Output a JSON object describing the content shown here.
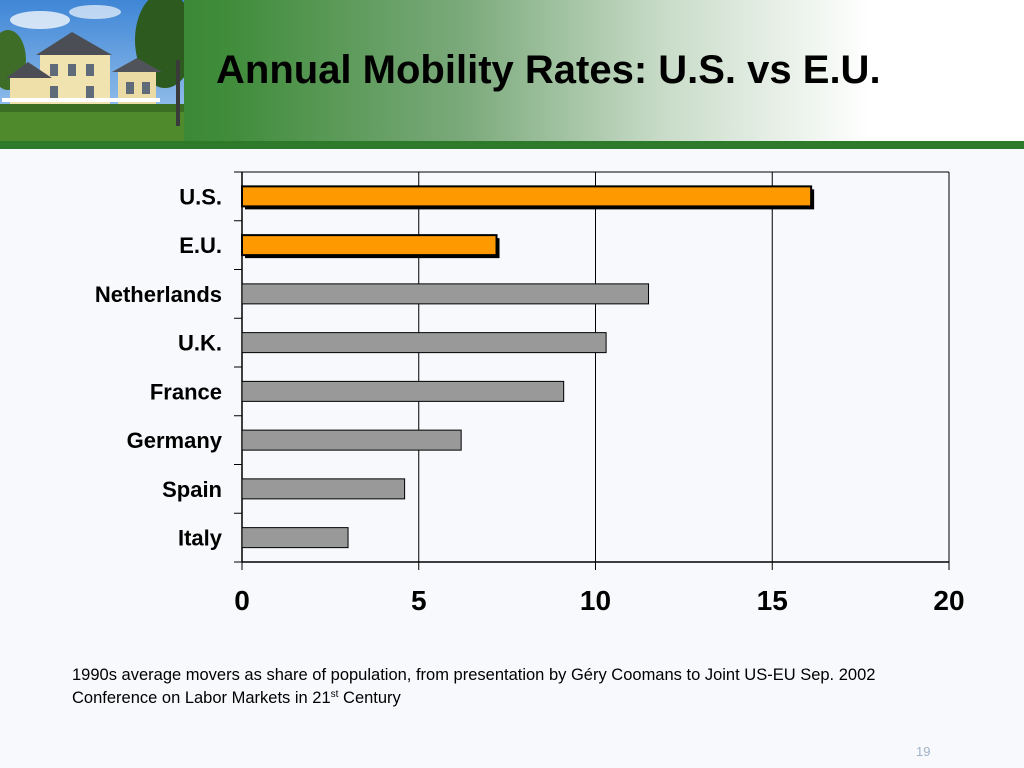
{
  "slide": {
    "title": "Annual Mobility Rates: U.S. vs E.U.",
    "caption_main": "1990s average movers as share of population, from presentation by Géry Coomans to Joint US-EU Sep. 2002 Conference on Labor Markets in 21",
    "caption_sup": "st",
    "caption_tail": " Century",
    "page_number": "19"
  },
  "colors": {
    "highlight_bar": "#ff9900",
    "default_bar": "#999999",
    "header_green": "#2e7a2b"
  },
  "chart_data": {
    "type": "bar",
    "orientation": "horizontal",
    "categories": [
      "U.S.",
      "E.U.",
      "Netherlands",
      "U.K.",
      "France",
      "Germany",
      "Spain",
      "Italy"
    ],
    "values": [
      16.1,
      7.2,
      11.5,
      10.3,
      9.1,
      6.2,
      4.6,
      3.0
    ],
    "highlighted": [
      "U.S.",
      "E.U."
    ],
    "xlim": [
      0,
      20
    ],
    "xticks": [
      0,
      5,
      10,
      15,
      20
    ],
    "grid": true,
    "title": "",
    "xlabel": "",
    "ylabel": ""
  }
}
